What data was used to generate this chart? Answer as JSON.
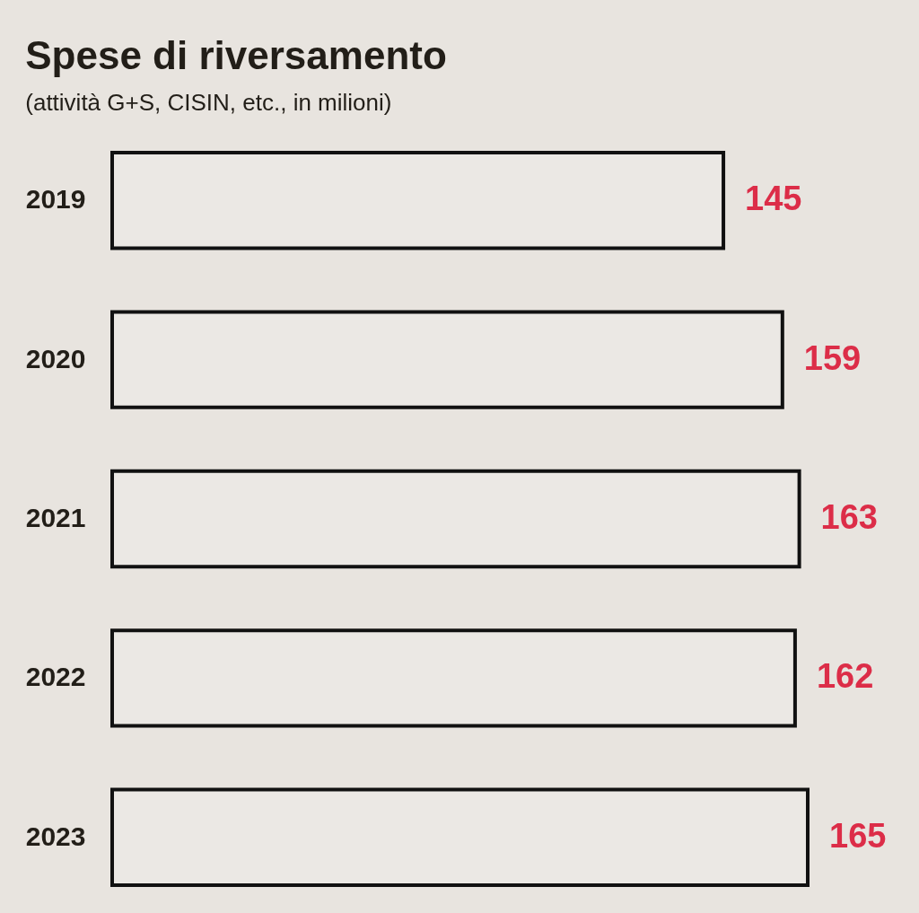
{
  "chart_data": {
    "type": "bar",
    "orientation": "horizontal",
    "title": "Spese di riversamento",
    "subtitle": "(attività G+S, CISIN, etc., in milioni)",
    "categories": [
      "2019",
      "2020",
      "2021",
      "2022",
      "2023"
    ],
    "values": [
      145,
      159,
      163,
      162,
      165
    ],
    "color": "#ebe8e4",
    "data_labels": true,
    "tick_labels": "y"
  }
}
